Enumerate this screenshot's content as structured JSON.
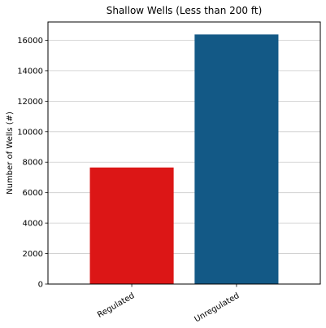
{
  "chart_data": {
    "type": "bar",
    "title": "Shallow Wells (Less than 200 ft)",
    "xlabel": "",
    "ylabel": "Number of Wells (#)",
    "categories": [
      "Regulated",
      "Unregulated"
    ],
    "values": [
      7650,
      16380
    ],
    "colors": [
      "#dc1616",
      "#135986"
    ],
    "ylim": [
      0,
      17200
    ],
    "yticks": [
      0,
      2000,
      4000,
      6000,
      8000,
      10000,
      12000,
      14000,
      16000
    ],
    "ytick_labels": [
      "0",
      "2000",
      "4000",
      "6000",
      "8000",
      "10000",
      "12000",
      "14000",
      "16000"
    ],
    "grid": "horizontal",
    "xtick_rotation": "30 degrees"
  }
}
